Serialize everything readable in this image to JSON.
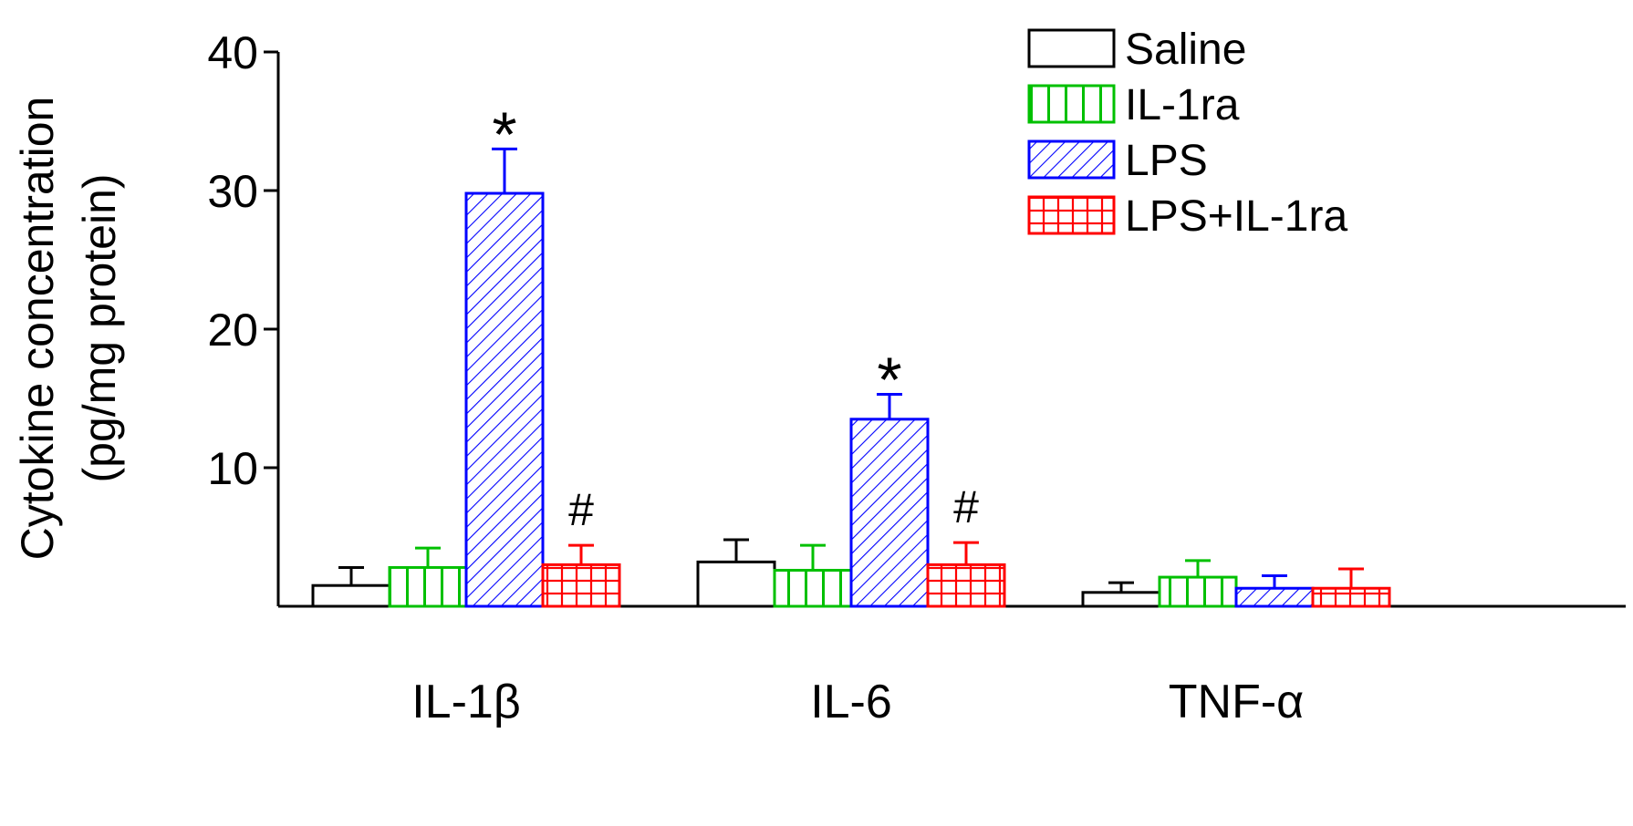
{
  "chart_data": {
    "type": "bar",
    "ylabel_line1": "Cytokine concentration",
    "ylabel_line2": "(pg/mg protein)",
    "xlabel": "",
    "ylim": [
      0,
      40
    ],
    "yticks": [
      "10",
      "20",
      "30",
      "40"
    ],
    "categories": [
      "IL-1β",
      "IL-6",
      "TNF-α"
    ],
    "legend_position": "top-right",
    "series": [
      {
        "name": "Saline",
        "color": "#000000",
        "pattern": "none",
        "values": [
          1.5,
          3.2,
          1.0
        ],
        "errors": [
          1.3,
          1.6,
          0.7
        ]
      },
      {
        "name": "IL-1ra",
        "color": "#00c000",
        "pattern": "vertical",
        "values": [
          2.8,
          2.6,
          2.1
        ],
        "errors": [
          1.4,
          1.8,
          1.2
        ]
      },
      {
        "name": "LPS",
        "color": "#0000ff",
        "pattern": "diagonal",
        "values": [
          29.8,
          13.5,
          1.3
        ],
        "errors": [
          3.2,
          1.8,
          0.9
        ]
      },
      {
        "name": "LPS+IL-1ra",
        "color": "#ff0000",
        "pattern": "grid",
        "values": [
          3.0,
          3.0,
          1.3
        ],
        "errors": [
          1.4,
          1.6,
          1.4
        ]
      }
    ],
    "annotations": [
      {
        "category": 0,
        "series": 2,
        "text": "*"
      },
      {
        "category": 0,
        "series": 3,
        "text": "#"
      },
      {
        "category": 1,
        "series": 2,
        "text": "*"
      },
      {
        "category": 1,
        "series": 3,
        "text": "#"
      }
    ]
  }
}
